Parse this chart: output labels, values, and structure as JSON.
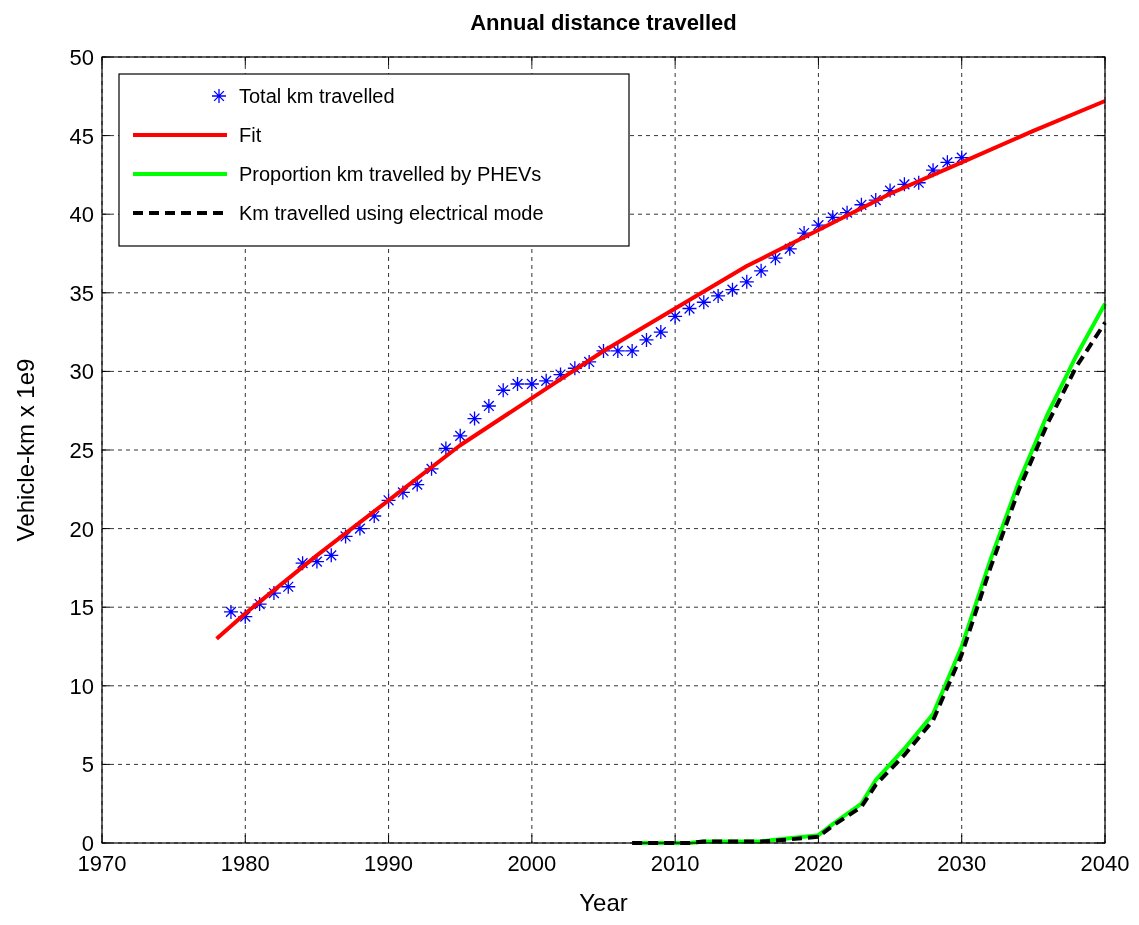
{
  "chart_data": {
    "type": "line",
    "title": "Annual distance travelled",
    "xlabel": "Year",
    "ylabel": "Vehicle-km x 1e9",
    "xlim": [
      1970,
      2040
    ],
    "xticks": [
      1970,
      1980,
      1990,
      2000,
      2010,
      2020,
      2030,
      2040
    ],
    "ylim": [
      0,
      50
    ],
    "yticks": [
      0,
      5,
      10,
      15,
      20,
      25,
      30,
      35,
      40,
      45,
      50
    ],
    "grid": true,
    "legend": "top left",
    "series": [
      {
        "name": "Total km travelled",
        "type": "scatter",
        "marker": "cross",
        "color": "#0000ff",
        "x": [
          1979,
          1980,
          1981,
          1982,
          1983,
          1984,
          1985,
          1986,
          1987,
          1988,
          1989,
          1990,
          1991,
          1992,
          1993,
          1994,
          1995,
          1996,
          1997,
          1998,
          1999,
          2000,
          2001,
          2002,
          2003,
          2004,
          2005,
          2006,
          2007,
          2008,
          2009,
          2010,
          2011,
          2012,
          2013,
          2014,
          2015,
          2016,
          2017,
          2018,
          2019,
          2020,
          2021,
          2022,
          2023,
          2024,
          2025,
          2026,
          2027,
          2028,
          2029,
          2030
        ],
        "values": [
          14.7,
          14.4,
          15.2,
          15.9,
          16.3,
          17.8,
          17.9,
          18.3,
          19.5,
          20.0,
          20.8,
          21.8,
          22.3,
          22.8,
          23.8,
          25.1,
          25.9,
          27.0,
          27.8,
          28.8,
          29.2,
          29.2,
          29.4,
          29.8,
          30.2,
          30.6,
          31.3,
          31.3,
          31.3,
          32.0,
          32.5,
          33.5,
          34.0,
          34.4,
          34.8,
          35.2,
          35.7,
          36.4,
          37.2,
          37.8,
          38.8,
          39.3,
          39.8,
          40.1,
          40.6,
          40.9,
          41.5,
          41.9,
          42.0,
          42.8,
          43.3,
          43.6
        ]
      },
      {
        "name": "Fit",
        "type": "line",
        "line_style": "solid",
        "color": "#ff0000",
        "x": [
          1978,
          1980,
          1985,
          1990,
          1995,
          2000,
          2005,
          2010,
          2015,
          2020,
          2025,
          2030,
          2035,
          2040
        ],
        "values": [
          13.0,
          14.6,
          18.3,
          21.8,
          25.3,
          28.3,
          31.3,
          34.0,
          36.7,
          39.0,
          41.3,
          43.3,
          45.3,
          47.2
        ]
      },
      {
        "name": "Proportion km travelled by PHEVs",
        "type": "line",
        "line_style": "solid",
        "color": "#00ff00",
        "x": [
          2007,
          2011,
          2012,
          2016,
          2017,
          2020,
          2021,
          2023,
          2024,
          2026,
          2028,
          2030,
          2032,
          2034,
          2036,
          2038,
          2040
        ],
        "values": [
          0,
          0,
          0.1,
          0.1,
          0.2,
          0.5,
          1.2,
          2.5,
          4,
          6,
          8.2,
          12.5,
          18,
          23,
          27.3,
          31,
          34.3
        ]
      },
      {
        "name": "Km travelled using electrical mode",
        "type": "line",
        "line_style": "dashed",
        "color": "#000000",
        "x": [
          2007,
          2011,
          2012,
          2016,
          2017,
          2020,
          2021,
          2023,
          2024,
          2026,
          2028,
          2030,
          2032,
          2034,
          2036,
          2038,
          2040
        ],
        "values": [
          0,
          0,
          0.1,
          0.1,
          0.15,
          0.4,
          1.1,
          2.3,
          3.7,
          5.6,
          7.8,
          12,
          17.5,
          22.5,
          26.7,
          30.3,
          33.1
        ]
      }
    ]
  }
}
